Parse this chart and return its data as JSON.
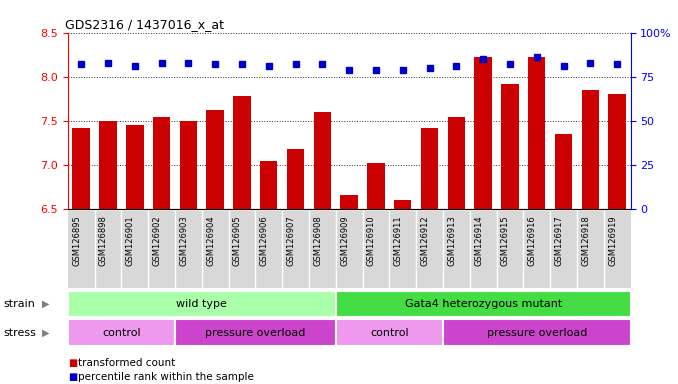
{
  "title": "GDS2316 / 1437016_x_at",
  "samples": [
    "GSM126895",
    "GSM126898",
    "GSM126901",
    "GSM126902",
    "GSM126903",
    "GSM126904",
    "GSM126905",
    "GSM126906",
    "GSM126907",
    "GSM126908",
    "GSM126909",
    "GSM126910",
    "GSM126911",
    "GSM126912",
    "GSM126913",
    "GSM126914",
    "GSM126915",
    "GSM126916",
    "GSM126917",
    "GSM126918",
    "GSM126919"
  ],
  "transformed_count": [
    7.42,
    7.5,
    7.45,
    7.55,
    7.5,
    7.62,
    7.78,
    7.05,
    7.18,
    7.6,
    6.66,
    7.02,
    6.6,
    7.42,
    7.55,
    8.22,
    7.92,
    8.22,
    7.35,
    7.85,
    7.8
  ],
  "percentile_rank": [
    82,
    83,
    81,
    83,
    83,
    82,
    82,
    81,
    82,
    82,
    79,
    79,
    79,
    80,
    81,
    85,
    82,
    86,
    81,
    83,
    82
  ],
  "ylim_left": [
    6.5,
    8.5
  ],
  "ylim_right": [
    0,
    100
  ],
  "yticks_left": [
    6.5,
    7.0,
    7.5,
    8.0,
    8.5
  ],
  "yticks_right": [
    0,
    25,
    50,
    75,
    100
  ],
  "bar_color": "#cc0000",
  "dot_color": "#0000cc",
  "plot_bg": "#ffffff",
  "tick_bg": "#d8d8d8",
  "strain_groups": [
    {
      "label": "wild type",
      "start": 0,
      "end": 10,
      "color": "#aaffaa"
    },
    {
      "label": "Gata4 heterozygous mutant",
      "start": 10,
      "end": 21,
      "color": "#44dd44"
    }
  ],
  "stress_groups": [
    {
      "label": "control",
      "start": 0,
      "end": 4,
      "color": "#ee99ee"
    },
    {
      "label": "pressure overload",
      "start": 4,
      "end": 10,
      "color": "#cc44cc"
    },
    {
      "label": "control",
      "start": 10,
      "end": 14,
      "color": "#ee99ee"
    },
    {
      "label": "pressure overload",
      "start": 14,
      "end": 21,
      "color": "#cc44cc"
    }
  ],
  "legend_bar_label": "transformed count",
  "legend_dot_label": "percentile rank within the sample"
}
